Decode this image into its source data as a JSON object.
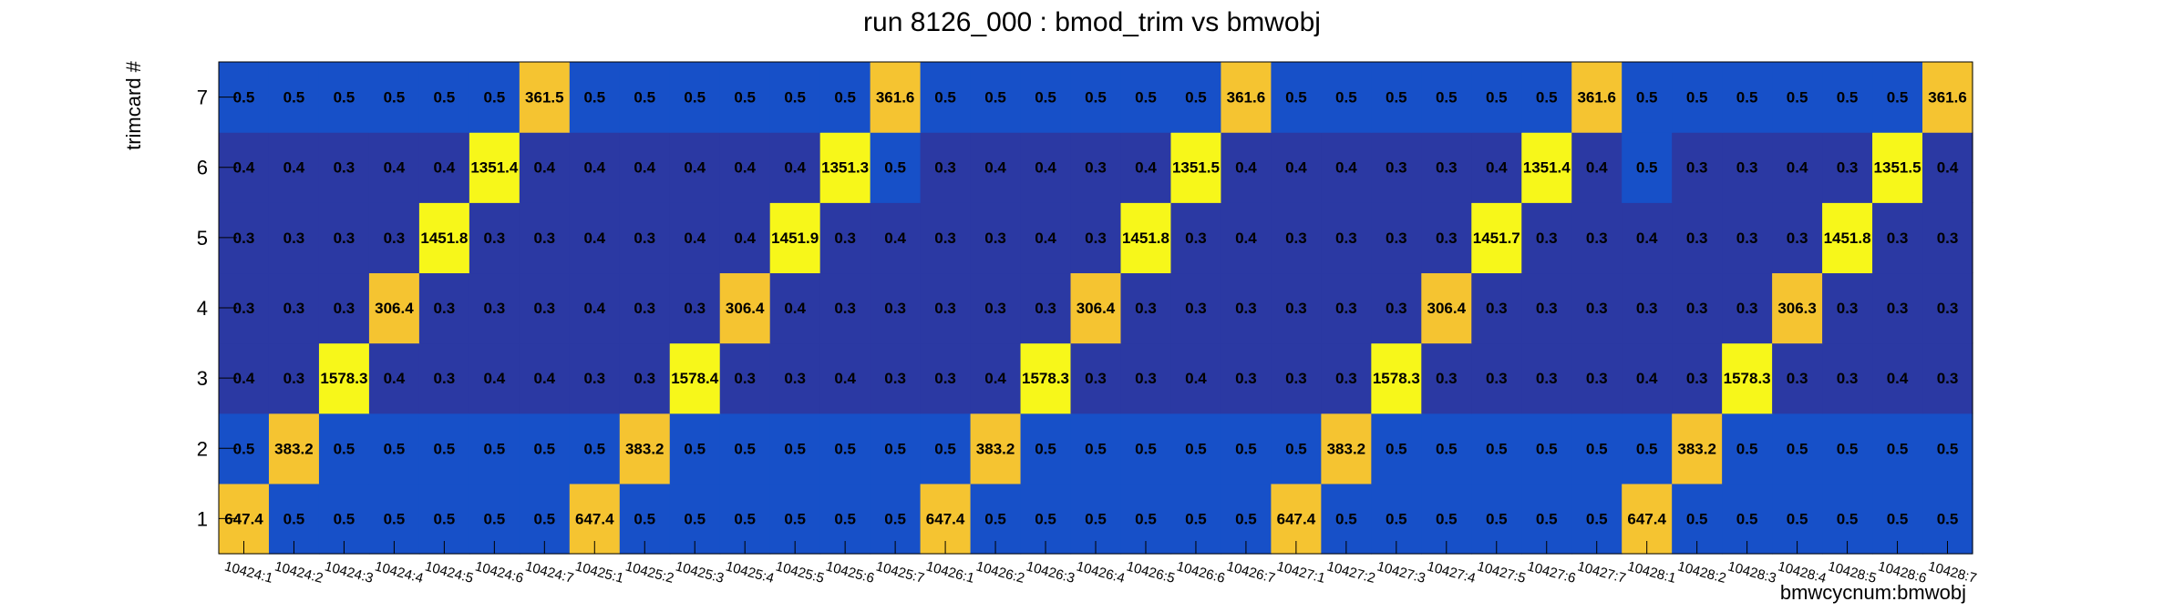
{
  "chart_data": {
    "type": "heatmap",
    "title": "run 8126_000 : bmod_trim vs bmwobj",
    "xlabel": "bmwcycnum:bmwobj",
    "ylabel": "trimcard #",
    "x_categories": [
      "10424:1",
      "10424:2",
      "10424:3",
      "10424:4",
      "10424:5",
      "10424:6",
      "10424:7",
      "10425:1",
      "10425:2",
      "10425:3",
      "10425:4",
      "10425:5",
      "10425:6",
      "10425:7",
      "10426:1",
      "10426:2",
      "10426:3",
      "10426:4",
      "10426:5",
      "10426:6",
      "10426:7",
      "10427:1",
      "10427:2",
      "10427:3",
      "10427:4",
      "10427:5",
      "10427:6",
      "10427:7",
      "10428:1",
      "10428:2",
      "10428:3",
      "10428:4",
      "10428:5",
      "10428:6",
      "10428:7"
    ],
    "y_categories": [
      "1",
      "2",
      "3",
      "4",
      "5",
      "6",
      "7"
    ],
    "rows": {
      "1": [
        647.4,
        0.5,
        0.5,
        0.5,
        0.5,
        0.5,
        0.5,
        647.4,
        0.5,
        0.5,
        0.5,
        0.5,
        0.5,
        0.5,
        647.4,
        0.5,
        0.5,
        0.5,
        0.5,
        0.5,
        0.5,
        647.4,
        0.5,
        0.5,
        0.5,
        0.5,
        0.5,
        0.5,
        647.4,
        0.5,
        0.5,
        0.5,
        0.5,
        0.5,
        0.5
      ],
      "2": [
        0.5,
        383.2,
        0.5,
        0.5,
        0.5,
        0.5,
        0.5,
        0.5,
        383.2,
        0.5,
        0.5,
        0.5,
        0.5,
        0.5,
        0.5,
        383.2,
        0.5,
        0.5,
        0.5,
        0.5,
        0.5,
        0.5,
        383.2,
        0.5,
        0.5,
        0.5,
        0.5,
        0.5,
        0.5,
        383.2,
        0.5,
        0.5,
        0.5,
        0.5,
        0.5
      ],
      "3": [
        0.4,
        0.3,
        1578.3,
        0.4,
        0.3,
        0.4,
        0.4,
        0.3,
        0.3,
        1578.4,
        0.3,
        0.3,
        0.4,
        0.3,
        0.3,
        0.4,
        1578.3,
        0.3,
        0.3,
        0.4,
        0.3,
        0.3,
        0.3,
        1578.3,
        0.3,
        0.3,
        0.3,
        0.3,
        0.4,
        0.3,
        1578.3,
        0.3,
        0.3,
        0.4,
        0.3
      ],
      "4": [
        0.3,
        0.3,
        0.3,
        306.4,
        0.3,
        0.3,
        0.3,
        0.4,
        0.3,
        0.3,
        306.4,
        0.4,
        0.3,
        0.3,
        0.3,
        0.3,
        0.3,
        306.4,
        0.3,
        0.3,
        0.3,
        0.3,
        0.3,
        0.3,
        306.4,
        0.3,
        0.3,
        0.3,
        0.3,
        0.3,
        0.3,
        306.3,
        0.3,
        0.3,
        0.3
      ],
      "5": [
        0.3,
        0.3,
        0.3,
        0.3,
        1451.8,
        0.3,
        0.3,
        0.4,
        0.3,
        0.4,
        0.4,
        1451.9,
        0.3,
        0.4,
        0.3,
        0.3,
        0.4,
        0.3,
        1451.8,
        0.3,
        0.4,
        0.3,
        0.3,
        0.3,
        0.3,
        1451.7,
        0.3,
        0.3,
        0.4,
        0.3,
        0.3,
        0.3,
        1451.8,
        0.3,
        0.3
      ],
      "6": [
        0.4,
        0.4,
        0.3,
        0.4,
        0.4,
        1351.4,
        0.4,
        0.4,
        0.4,
        0.4,
        0.4,
        0.4,
        1351.3,
        0.5,
        0.3,
        0.4,
        0.4,
        0.3,
        0.4,
        1351.5,
        0.4,
        0.4,
        0.4,
        0.3,
        0.3,
        0.4,
        1351.4,
        0.4,
        0.5,
        0.3,
        0.3,
        0.4,
        0.3,
        1351.5,
        0.4
      ],
      "7": [
        0.5,
        0.5,
        0.5,
        0.5,
        0.5,
        0.5,
        361.5,
        0.5,
        0.5,
        0.5,
        0.5,
        0.5,
        0.5,
        361.6,
        0.5,
        0.5,
        0.5,
        0.5,
        0.5,
        0.5,
        361.6,
        0.5,
        0.5,
        0.5,
        0.5,
        0.5,
        0.5,
        361.6,
        0.5,
        0.5,
        0.5,
        0.5,
        0.5,
        0.5,
        361.6
      ]
    },
    "colors": {
      "very_low": "#2b39a3",
      "low": "#1750c8",
      "mid": "#f5c431",
      "high": "#f7f71a"
    },
    "grid": false,
    "legend": "none"
  }
}
